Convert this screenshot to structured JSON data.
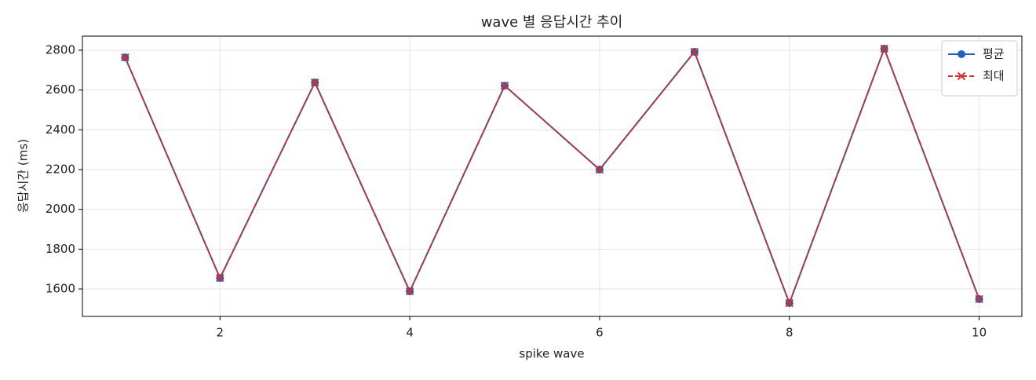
{
  "chart_data": {
    "type": "line",
    "title": "wave 별 응답시간 추이",
    "x_label": "spike wave",
    "y_label": "응답시간 (ms)",
    "x": [
      1,
      2,
      3,
      4,
      5,
      6,
      7,
      8,
      9,
      10
    ],
    "series": [
      {
        "name": "평균",
        "color": "#1f62c0",
        "marker": "circle",
        "dash": false,
        "values": [
          2764,
          1655,
          2638,
          1588,
          2622,
          2200,
          2792,
          1529,
          2808,
          1549
        ]
      },
      {
        "name": "최대",
        "color": "#d0312d",
        "marker": "x",
        "dash": true,
        "values": [
          2764,
          1655,
          2638,
          1588,
          2622,
          2200,
          2792,
          1529,
          2808,
          1549
        ]
      }
    ],
    "xlim": [
      0.55,
      10.45
    ],
    "ylim": [
      1462,
      2871
    ],
    "xticks": [
      2,
      4,
      6,
      8,
      10
    ],
    "yticks": [
      1600,
      1800,
      2000,
      2200,
      2400,
      2600,
      2800
    ],
    "grid": true,
    "legend": "upper right"
  }
}
